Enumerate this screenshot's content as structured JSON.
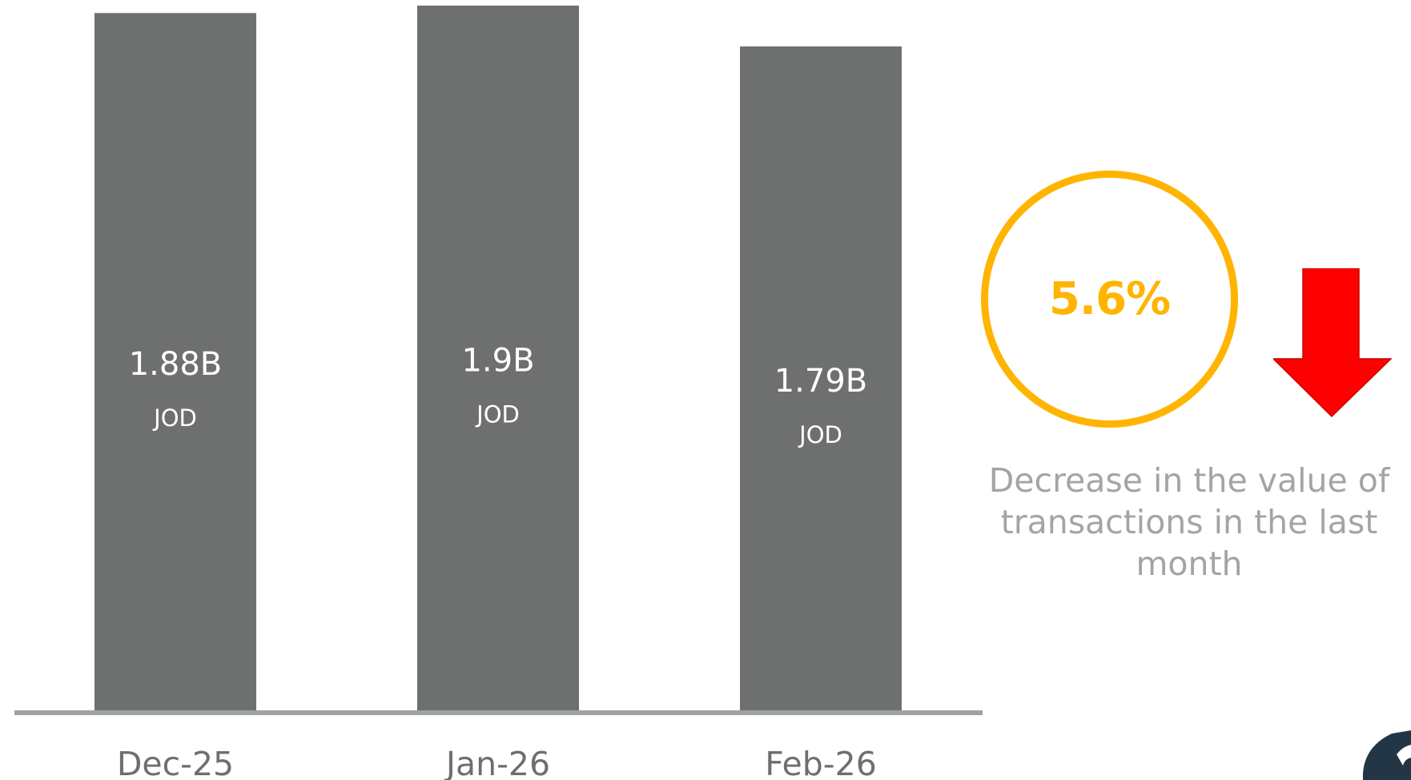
{
  "chart_data": {
    "type": "bar",
    "categories": [
      "Dec-25",
      "Jan-26",
      "Feb-26"
    ],
    "values": [
      1.88,
      1.9,
      1.79
    ],
    "value_labels": [
      "1.88B",
      "1.9B",
      "1.79B"
    ],
    "unit_label": "JOD",
    "title": "",
    "xlabel": "",
    "ylabel": "",
    "ylim": [
      0,
      1.9
    ],
    "grid": false,
    "legend": "none",
    "colors": {
      "bar": "#6e706f",
      "baseline": "#9ea3a0",
      "bar_text": "#ffffff",
      "category_text": "#6d6f6e"
    }
  },
  "kpi": {
    "value": "5.6%",
    "caption": "Decrease in the value of transactions in the last month",
    "direction_icon": "arrow-down-icon",
    "colors": {
      "ring": "#ffb400",
      "arrow": "#ff0000",
      "caption": "#a3a5a4"
    }
  }
}
